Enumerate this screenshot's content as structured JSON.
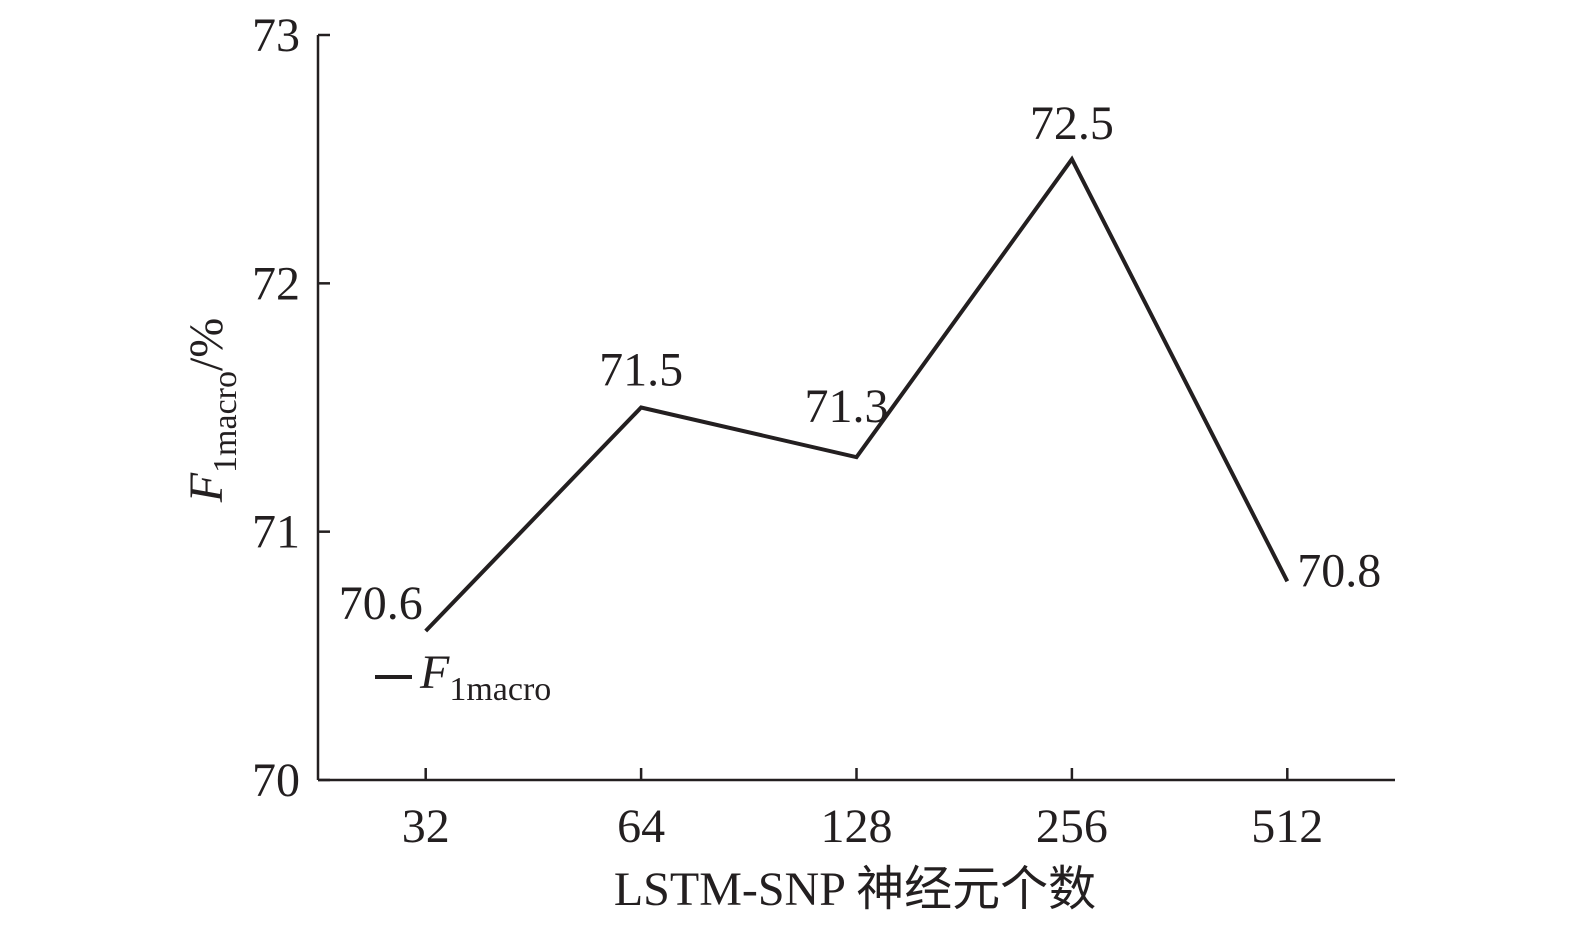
{
  "chart_data": {
    "type": "line",
    "x_label": "LSTM-SNP 神经元个数",
    "y_label": [
      "F",
      "1macro",
      "/%"
    ],
    "legend": {
      "symbol": "F",
      "subscript": "1macro"
    },
    "categories": [
      "32",
      "64",
      "128",
      "256",
      "512"
    ],
    "series": [
      {
        "color": "#231f20",
        "values": [
          70.6,
          71.5,
          71.3,
          72.5,
          70.8
        ]
      }
    ],
    "ylim": [
      70,
      73
    ],
    "yticks": [
      70,
      71,
      72,
      73
    ],
    "grid": false
  }
}
